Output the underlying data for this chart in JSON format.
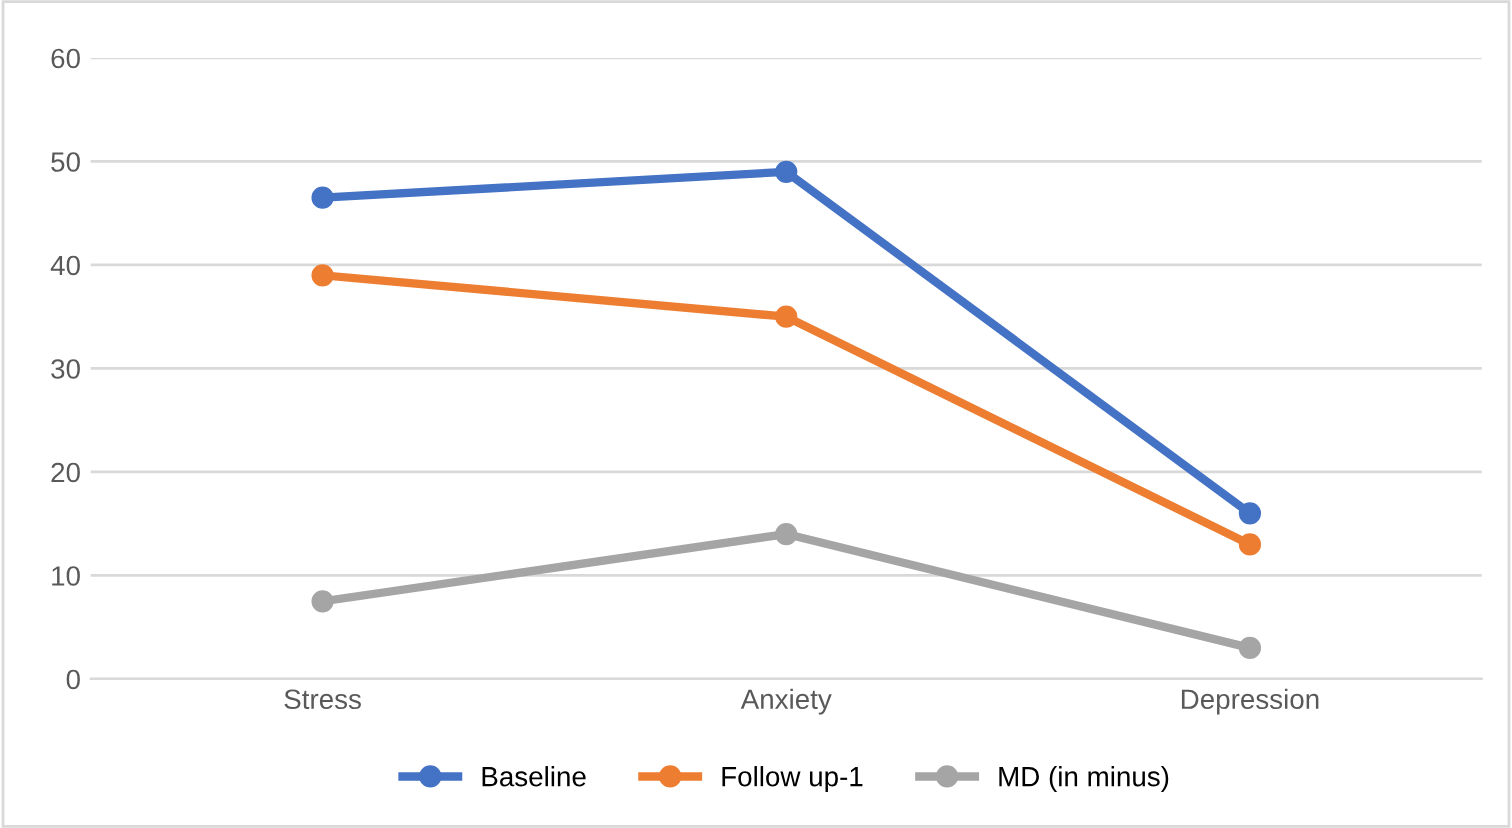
{
  "chart_data": {
    "type": "line",
    "categories": [
      "Stress",
      "Anxiety",
      "Depression"
    ],
    "series": [
      {
        "name": "Baseline",
        "color": "#4472c4",
        "values": [
          46.5,
          49,
          16
        ]
      },
      {
        "name": "Follow up-1",
        "color": "#ed7d31",
        "values": [
          39,
          35,
          13
        ]
      },
      {
        "name": "MD (in minus)",
        "color": "#a5a5a5",
        "values": [
          7.5,
          14,
          3
        ]
      }
    ],
    "ylim": [
      0,
      60
    ],
    "yticks": [
      0,
      10,
      20,
      30,
      40,
      50,
      60
    ],
    "grid": "y",
    "legend": "bottom",
    "marker": "circle",
    "line_style": "solid"
  }
}
